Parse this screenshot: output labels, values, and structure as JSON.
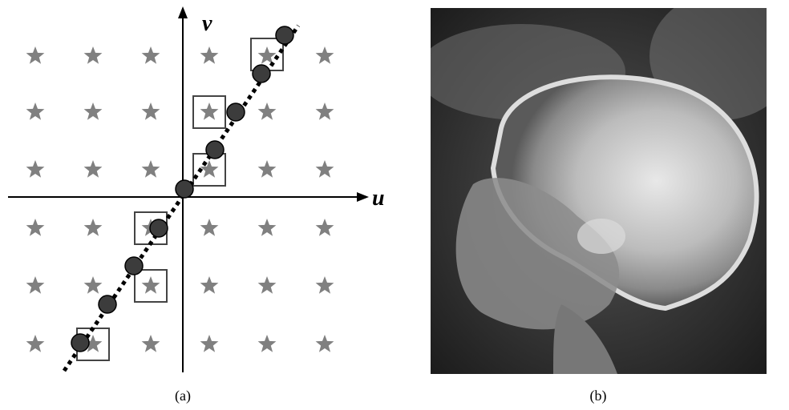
{
  "panels": [
    {
      "label": "(a)",
      "axes": {
        "x": "u",
        "y": "v"
      }
    },
    {
      "label": "(b)"
    }
  ]
}
